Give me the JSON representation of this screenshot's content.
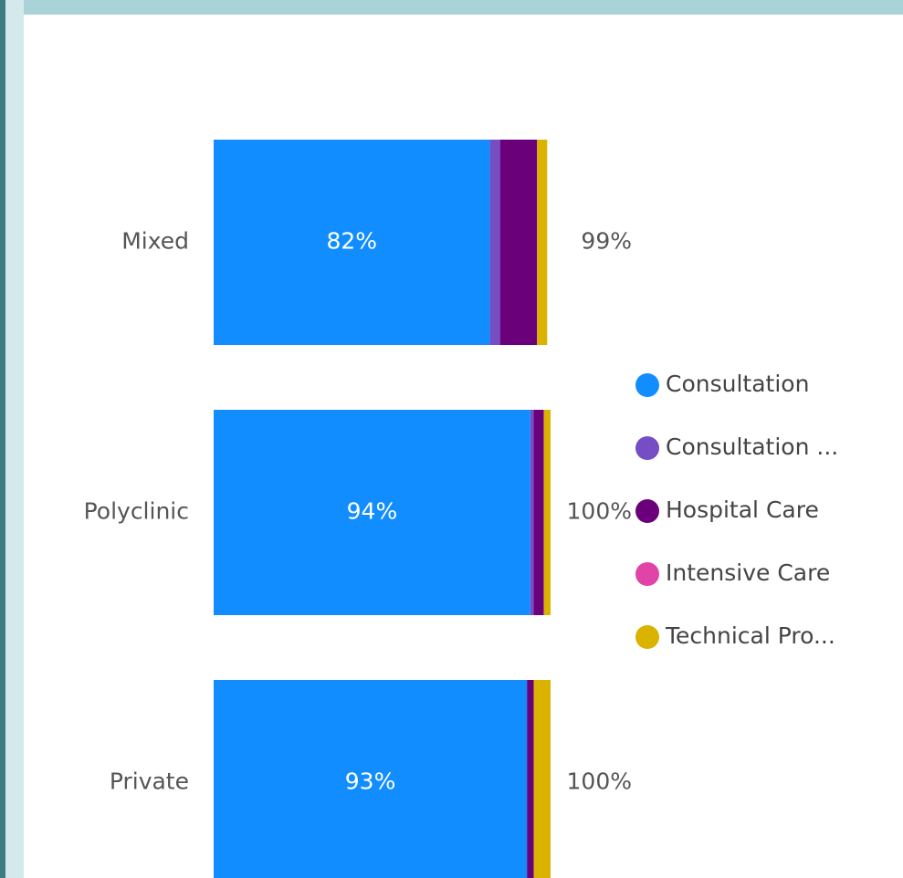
{
  "chart_data": {
    "type": "stacked-bar-horizontal",
    "categories": [
      "Mixed",
      "Polyclinic",
      "Private"
    ],
    "series": [
      {
        "name": "Consultation",
        "color": "#118dff",
        "values": [
          82,
          94,
          93
        ],
        "value_labels": [
          "82%",
          "94%",
          "93%"
        ]
      },
      {
        "name": "Consultation ...",
        "color": "#744ec2",
        "values": [
          3,
          1,
          0
        ]
      },
      {
        "name": "Hospital Care",
        "color": "#6b007b",
        "values": [
          11,
          3,
          2
        ]
      },
      {
        "name": "Intensive Care",
        "color": "#e044a7",
        "values": [
          0,
          0,
          0
        ]
      },
      {
        "name": "Technical Pro...",
        "color": "#d9b300",
        "values": [
          3,
          2,
          5
        ]
      }
    ],
    "totals": [
      99,
      100,
      100
    ],
    "total_labels": [
      "99%",
      "100%",
      "100%"
    ]
  }
}
